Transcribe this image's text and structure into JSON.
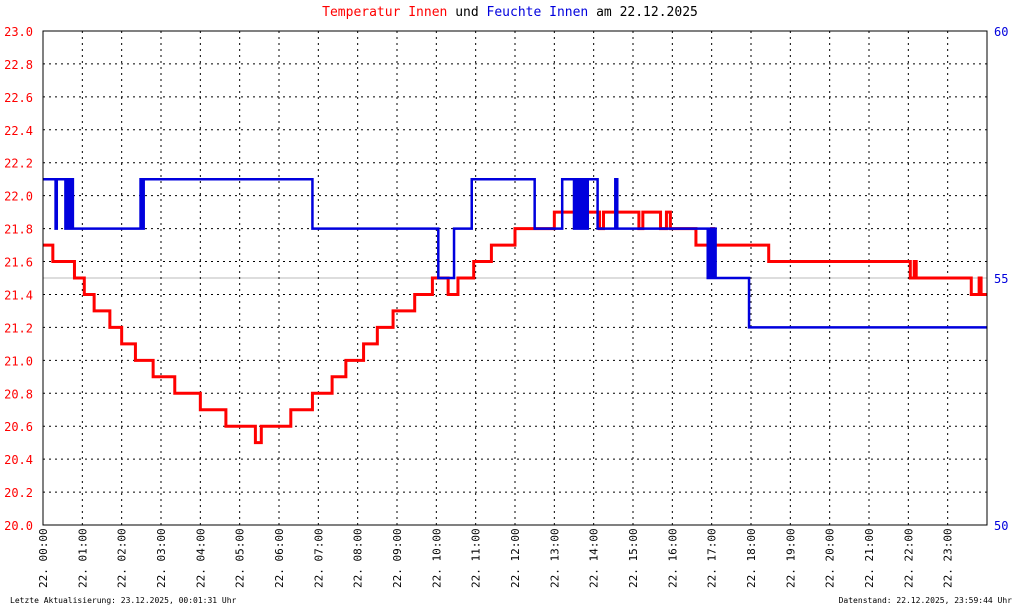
{
  "title": {
    "series1": "Temperatur Innen",
    "connector1": "und",
    "series2": "Feuchte Innen",
    "connector2": "am",
    "date": "22.12.2025"
  },
  "footer": {
    "left": "Letzte Aktualisierung: 23.12.2025, 00:01:31 Uhr",
    "right": "Datenstand: 22.12.2025, 23:59:44 Uhr"
  },
  "colors": {
    "temperature": "#ff0000",
    "humidity": "#0000dd",
    "grid": "#000000",
    "background": "#ffffff"
  },
  "chart_data": {
    "type": "line",
    "title": "Temperatur Innen und Feuchte Innen am 22.12.2025",
    "grid": true,
    "x_unit": "hours",
    "xlim": [
      0,
      24
    ],
    "x_tick_labels": [
      "22. 00:00",
      "22. 01:00",
      "22. 02:00",
      "22. 03:00",
      "22. 04:00",
      "22. 05:00",
      "22. 06:00",
      "22. 07:00",
      "22. 08:00",
      "22. 09:00",
      "22. 10:00",
      "22. 11:00",
      "22. 12:00",
      "22. 13:00",
      "22. 14:00",
      "22. 15:00",
      "22. 16:00",
      "22. 17:00",
      "22. 18:00",
      "22. 19:00",
      "22. 20:00",
      "22. 21:00",
      "22. 22:00",
      "22. 23:00"
    ],
    "y_left": {
      "min": 20.0,
      "max": 23.0,
      "ticks": [
        "20.0",
        "20.2",
        "20.4",
        "20.6",
        "20.8",
        "21.0",
        "21.2",
        "21.4",
        "21.6",
        "21.8",
        "22.0",
        "22.2",
        "22.4",
        "22.6",
        "22.8",
        "23.0"
      ]
    },
    "y_right": {
      "min": 50,
      "max": 60,
      "ticks": [
        "50",
        "55",
        "60"
      ]
    },
    "series": [
      {
        "name": "Temperatur Innen",
        "axis": "left",
        "points": [
          [
            0.0,
            21.7
          ],
          [
            0.25,
            21.6
          ],
          [
            0.75,
            21.6
          ],
          [
            0.8,
            21.5
          ],
          [
            1.0,
            21.5
          ],
          [
            1.05,
            21.4
          ],
          [
            1.25,
            21.4
          ],
          [
            1.3,
            21.3
          ],
          [
            1.65,
            21.3
          ],
          [
            1.7,
            21.2
          ],
          [
            1.95,
            21.2
          ],
          [
            2.0,
            21.1
          ],
          [
            2.3,
            21.1
          ],
          [
            2.35,
            21.0
          ],
          [
            2.75,
            21.0
          ],
          [
            2.8,
            20.9
          ],
          [
            3.3,
            20.9
          ],
          [
            3.35,
            20.8
          ],
          [
            3.95,
            20.8
          ],
          [
            4.0,
            20.7
          ],
          [
            4.6,
            20.7
          ],
          [
            4.65,
            20.6
          ],
          [
            5.35,
            20.6
          ],
          [
            5.4,
            20.5
          ],
          [
            5.55,
            20.6
          ],
          [
            6.25,
            20.6
          ],
          [
            6.3,
            20.7
          ],
          [
            6.8,
            20.7
          ],
          [
            6.85,
            20.8
          ],
          [
            7.3,
            20.8
          ],
          [
            7.35,
            20.9
          ],
          [
            7.65,
            20.9
          ],
          [
            7.7,
            21.0
          ],
          [
            8.1,
            21.0
          ],
          [
            8.15,
            21.1
          ],
          [
            8.45,
            21.1
          ],
          [
            8.5,
            21.2
          ],
          [
            8.85,
            21.2
          ],
          [
            8.9,
            21.3
          ],
          [
            9.4,
            21.3
          ],
          [
            9.45,
            21.4
          ],
          [
            9.85,
            21.4
          ],
          [
            9.9,
            21.5
          ],
          [
            10.25,
            21.5
          ],
          [
            10.3,
            21.4
          ],
          [
            10.55,
            21.5
          ],
          [
            10.9,
            21.5
          ],
          [
            10.95,
            21.6
          ],
          [
            11.35,
            21.6
          ],
          [
            11.4,
            21.7
          ],
          [
            11.95,
            21.7
          ],
          [
            12.0,
            21.8
          ],
          [
            12.95,
            21.8
          ],
          [
            13.0,
            21.9
          ],
          [
            14.1,
            21.9
          ],
          [
            14.15,
            21.8
          ],
          [
            14.25,
            21.9
          ],
          [
            15.1,
            21.9
          ],
          [
            15.15,
            21.8
          ],
          [
            15.25,
            21.9
          ],
          [
            15.65,
            21.9
          ],
          [
            15.7,
            21.8
          ],
          [
            15.85,
            21.9
          ],
          [
            15.95,
            21.8
          ],
          [
            16.55,
            21.8
          ],
          [
            16.6,
            21.7
          ],
          [
            16.95,
            21.7
          ],
          [
            17.0,
            21.8
          ],
          [
            17.05,
            21.7
          ],
          [
            18.4,
            21.7
          ],
          [
            18.45,
            21.6
          ],
          [
            22.0,
            21.6
          ],
          [
            22.05,
            21.5
          ],
          [
            22.15,
            21.6
          ],
          [
            22.2,
            21.5
          ],
          [
            23.55,
            21.5
          ],
          [
            23.6,
            21.4
          ],
          [
            23.8,
            21.5
          ],
          [
            23.85,
            21.4
          ],
          [
            24.0,
            21.4
          ]
        ]
      },
      {
        "name": "Feuchte Innen",
        "axis": "right",
        "points": [
          [
            0.0,
            57.0
          ],
          [
            0.3,
            57.0
          ],
          [
            0.32,
            56.0
          ],
          [
            0.35,
            57.0
          ],
          [
            0.55,
            57.0
          ],
          [
            0.57,
            56.0
          ],
          [
            0.6,
            57.0
          ],
          [
            0.63,
            56.0
          ],
          [
            0.66,
            57.0
          ],
          [
            0.7,
            56.0
          ],
          [
            0.73,
            57.0
          ],
          [
            0.76,
            56.0
          ],
          [
            2.45,
            56.0
          ],
          [
            2.48,
            57.0
          ],
          [
            2.52,
            56.0
          ],
          [
            2.56,
            57.0
          ],
          [
            6.8,
            57.0
          ],
          [
            6.85,
            56.0
          ],
          [
            9.95,
            56.0
          ],
          [
            10.05,
            55.0
          ],
          [
            10.4,
            55.0
          ],
          [
            10.45,
            56.0
          ],
          [
            10.85,
            56.0
          ],
          [
            10.9,
            57.0
          ],
          [
            12.45,
            57.0
          ],
          [
            12.5,
            56.0
          ],
          [
            13.15,
            56.0
          ],
          [
            13.2,
            57.0
          ],
          [
            13.45,
            57.0
          ],
          [
            13.5,
            56.0
          ],
          [
            13.55,
            57.0
          ],
          [
            13.6,
            56.0
          ],
          [
            13.65,
            57.0
          ],
          [
            13.7,
            56.0
          ],
          [
            13.75,
            57.0
          ],
          [
            13.8,
            56.0
          ],
          [
            13.85,
            57.0
          ],
          [
            14.05,
            57.0
          ],
          [
            14.1,
            56.0
          ],
          [
            14.5,
            56.0
          ],
          [
            14.55,
            57.0
          ],
          [
            14.6,
            56.0
          ],
          [
            16.85,
            56.0
          ],
          [
            16.9,
            55.0
          ],
          [
            16.95,
            56.0
          ],
          [
            17.0,
            55.0
          ],
          [
            17.05,
            56.0
          ],
          [
            17.1,
            55.0
          ],
          [
            17.9,
            55.0
          ],
          [
            17.95,
            54.0
          ],
          [
            24.0,
            54.0
          ]
        ]
      }
    ]
  }
}
